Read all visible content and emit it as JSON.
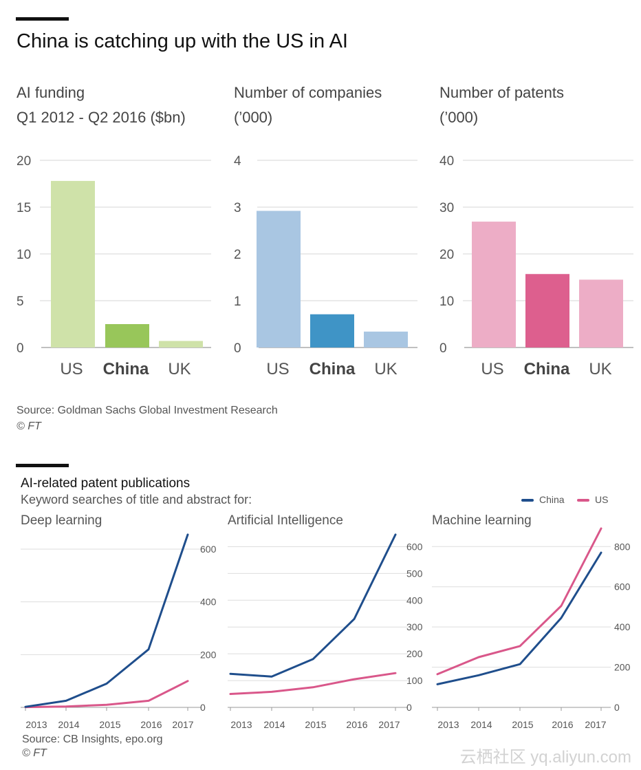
{
  "top_section": {
    "title": "China is catching up with the US in AI",
    "source": "Source: Goldman Sachs Global Investment Research",
    "copyright": "© FT"
  },
  "bottom_section": {
    "title": "AI-related patent publications",
    "subtitle": "Keyword searches of title and abstract for:",
    "source": "Source: CB Insights, epo.org",
    "copyright": "© FT",
    "legend": [
      {
        "label": "China",
        "color": "#1f4e8c"
      },
      {
        "label": "US",
        "color": "#d9578a"
      }
    ]
  },
  "watermark": "云栖社区 yq.aliyun.com",
  "chart_data": [
    {
      "type": "bar",
      "title": "AI funding",
      "subtitle": "Q1 2012 - Q2 2016 ($bn)",
      "categories": [
        "US",
        "China",
        "UK"
      ],
      "values": [
        17.8,
        2.5,
        0.7
      ],
      "colors": [
        "#cfe2a9",
        "#98c65a",
        "#cfe2a9"
      ],
      "ylim": [
        0,
        20
      ],
      "yticks": [
        0,
        5,
        10,
        15,
        20
      ],
      "highlight": "China"
    },
    {
      "type": "bar",
      "title": "Number of companies",
      "subtitle": "(’000)",
      "categories": [
        "US",
        "China",
        "UK"
      ],
      "values": [
        2.92,
        0.71,
        0.34
      ],
      "colors": [
        "#a9c6e2",
        "#3f94c6",
        "#a9c6e2"
      ],
      "ylim": [
        0,
        4
      ],
      "yticks": [
        0,
        1,
        2,
        3,
        4
      ],
      "highlight": "China"
    },
    {
      "type": "bar",
      "title": "Number of patents",
      "subtitle": "(’000)",
      "categories": [
        "US",
        "China",
        "UK"
      ],
      "values": [
        26.9,
        15.7,
        14.5
      ],
      "colors": [
        "#edadc6",
        "#dd5f8e",
        "#edadc6"
      ],
      "ylim": [
        0,
        40
      ],
      "yticks": [
        0,
        10,
        20,
        30,
        40
      ],
      "highlight": "China"
    },
    {
      "type": "line",
      "title": "Deep learning",
      "x": [
        "2013",
        "2014",
        "2015",
        "2016",
        "2017"
      ],
      "series": [
        {
          "name": "China",
          "values": [
            2,
            25,
            90,
            220,
            655
          ],
          "color": "#1f4e8c"
        },
        {
          "name": "US",
          "values": [
            1,
            3,
            10,
            25,
            100
          ],
          "color": "#d9578a"
        }
      ],
      "ylim": [
        0,
        660
      ],
      "yticks": [
        0,
        200,
        400,
        600
      ]
    },
    {
      "type": "line",
      "title": "Artificial Intelligence",
      "x": [
        "2013",
        "2014",
        "2015",
        "2016",
        "2017"
      ],
      "series": [
        {
          "name": "China",
          "values": [
            125,
            115,
            180,
            330,
            645
          ],
          "color": "#1f4e8c"
        },
        {
          "name": "US",
          "values": [
            50,
            58,
            75,
            105,
            128
          ],
          "color": "#d9578a"
        }
      ],
      "ylim": [
        0,
        650
      ],
      "yticks": [
        0,
        100,
        200,
        300,
        400,
        500,
        600
      ]
    },
    {
      "type": "line",
      "title": "Machine learning",
      "x": [
        "2013",
        "2014",
        "2015",
        "2016",
        "2017"
      ],
      "series": [
        {
          "name": "China",
          "values": [
            115,
            160,
            215,
            445,
            770
          ],
          "color": "#1f4e8c"
        },
        {
          "name": "US",
          "values": [
            165,
            250,
            305,
            505,
            890
          ],
          "color": "#d9578a"
        }
      ],
      "ylim": [
        0,
        890
      ],
      "yticks": [
        0,
        200,
        400,
        600,
        800
      ]
    }
  ]
}
